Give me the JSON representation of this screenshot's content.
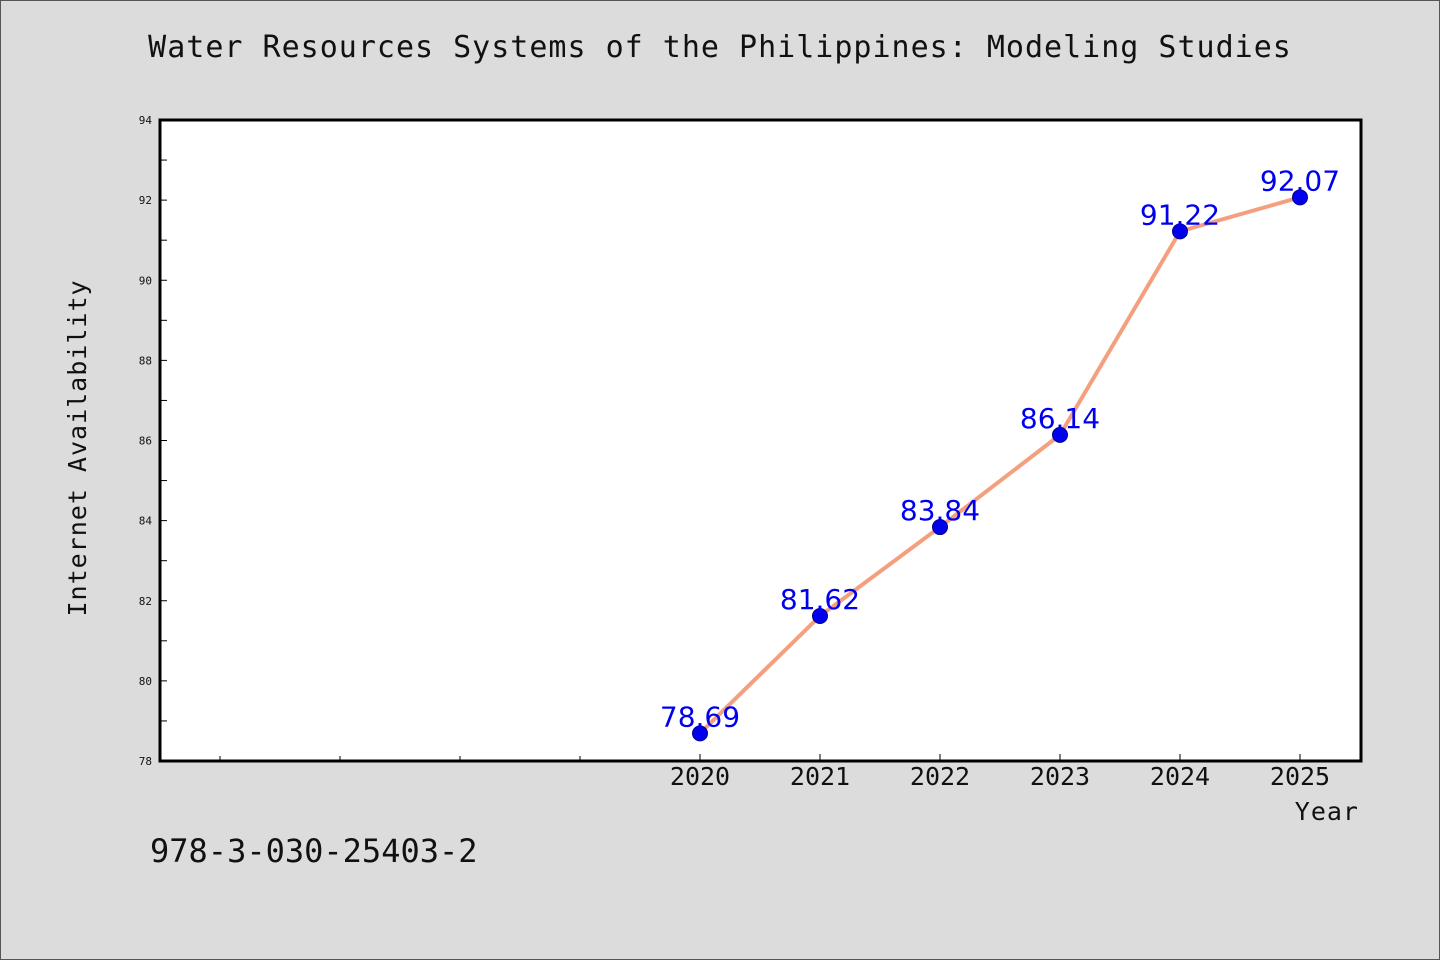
{
  "chart_data": {
    "type": "line",
    "title": "Water Resources Systems of the Philippines: Modeling Studies",
    "xlabel": "Year",
    "ylabel": "Internet Availability",
    "x": [
      2020,
      2021,
      2022,
      2023,
      2024,
      2025
    ],
    "x_tick_labels": [
      "2020",
      "2021",
      "2022",
      "2023",
      "2024",
      "2025"
    ],
    "ylim": [
      78,
      94
    ],
    "y_ticks": [
      78,
      80,
      82,
      84,
      86,
      88,
      90,
      92,
      94
    ],
    "y_tick_labels": [
      "78",
      "80",
      "82",
      "84",
      "86",
      "88",
      "90",
      "92",
      "94"
    ],
    "series": [
      {
        "values": [
          78.69,
          81.62,
          83.84,
          86.14,
          91.22,
          92.07
        ],
        "labels": [
          "78.69",
          "81.62",
          "83.84",
          "86.14",
          "91.22",
          "92.07"
        ],
        "line_color": "#f4a07f",
        "marker_color": "#0000ee"
      }
    ],
    "grid": false,
    "legend": "none",
    "footer_text": "978-3-030-25403-2"
  }
}
